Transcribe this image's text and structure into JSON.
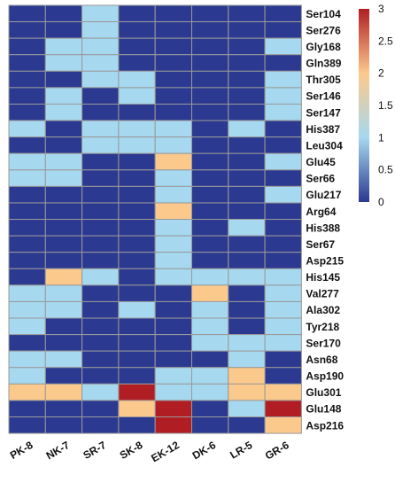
{
  "chart_data": {
    "type": "heatmap",
    "title": "",
    "xlabel": "",
    "ylabel": "",
    "columns": [
      "PK-8",
      "NK-7",
      "SR-7",
      "SK-8",
      "EK-12",
      "DK-6",
      "LR-5",
      "GR-6"
    ],
    "rows": [
      "Ser104",
      "Ser276",
      "Gly168",
      "Gln389",
      "Thr305",
      "Ser146",
      "Ser147",
      "His387",
      "Leu304",
      "Glu45",
      "Ser66",
      "Glu217",
      "Arg64",
      "His388",
      "Ser67",
      "Asp215",
      "His145",
      "Val277",
      "Ala302",
      "Tyr218",
      "Ser170",
      "Asn68",
      "Asp190",
      "Glu301",
      "Glu148",
      "Asp216"
    ],
    "values": [
      [
        0,
        0,
        1,
        0,
        0,
        0,
        0,
        0
      ],
      [
        0,
        0,
        1,
        0,
        0,
        0,
        0,
        0
      ],
      [
        0,
        1,
        1,
        0,
        0,
        0,
        0,
        1
      ],
      [
        0,
        1,
        1,
        0,
        0,
        0,
        0,
        0
      ],
      [
        0,
        0,
        1,
        1,
        0,
        0,
        0,
        1
      ],
      [
        0,
        1,
        0,
        1,
        0,
        0,
        0,
        1
      ],
      [
        0,
        1,
        0,
        0,
        0,
        0,
        0,
        1
      ],
      [
        1,
        0,
        1,
        1,
        1,
        0,
        1,
        0
      ],
      [
        0,
        0,
        1,
        1,
        1,
        0,
        0,
        0
      ],
      [
        1,
        1,
        0,
        0,
        2,
        0,
        0,
        1
      ],
      [
        1,
        1,
        0,
        0,
        1,
        0,
        0,
        0
      ],
      [
        0,
        0,
        0,
        0,
        1,
        0,
        0,
        1
      ],
      [
        0,
        0,
        0,
        0,
        2,
        0,
        0,
        0
      ],
      [
        0,
        0,
        0,
        0,
        1,
        0,
        1,
        0
      ],
      [
        0,
        0,
        0,
        0,
        1,
        0,
        0,
        0
      ],
      [
        0,
        0,
        0,
        0,
        1,
        0,
        0,
        0
      ],
      [
        0,
        2,
        1,
        0,
        1,
        1,
        1,
        1
      ],
      [
        1,
        1,
        0,
        0,
        0,
        2,
        0,
        1
      ],
      [
        1,
        1,
        0,
        1,
        0,
        1,
        0,
        1
      ],
      [
        1,
        0,
        0,
        0,
        0,
        1,
        0,
        1
      ],
      [
        0,
        0,
        0,
        0,
        0,
        1,
        1,
        1
      ],
      [
        1,
        1,
        0,
        0,
        0,
        0,
        1,
        0
      ],
      [
        1,
        0,
        0,
        0,
        1,
        1,
        2,
        0
      ],
      [
        2,
        2,
        1,
        3,
        1,
        1,
        2,
        2
      ],
      [
        0,
        0,
        0,
        2,
        3,
        0,
        1,
        3
      ],
      [
        0,
        0,
        0,
        0,
        3,
        0,
        0,
        2
      ]
    ],
    "colorbar": {
      "min": 0,
      "max": 3,
      "ticks": [
        0,
        0.5,
        1,
        1.5,
        2,
        2.5,
        3
      ],
      "tick_labels": [
        "0",
        "0.5",
        "1",
        "1.5",
        "2",
        "2.5",
        "3"
      ],
      "stops": [
        {
          "value": 0,
          "color": "#2b3990"
        },
        {
          "value": 1,
          "color": "#a6d8ef"
        },
        {
          "value": 2,
          "color": "#fcc98c"
        },
        {
          "value": 3,
          "color": "#b01e23"
        }
      ]
    },
    "cell_colors": {
      "0": "#2b3990",
      "1": "#a6d8ef",
      "2": "#fcc98c",
      "3": "#b01e23"
    },
    "grid_line_color": "#9a9a9a",
    "legend_placement": "right"
  }
}
